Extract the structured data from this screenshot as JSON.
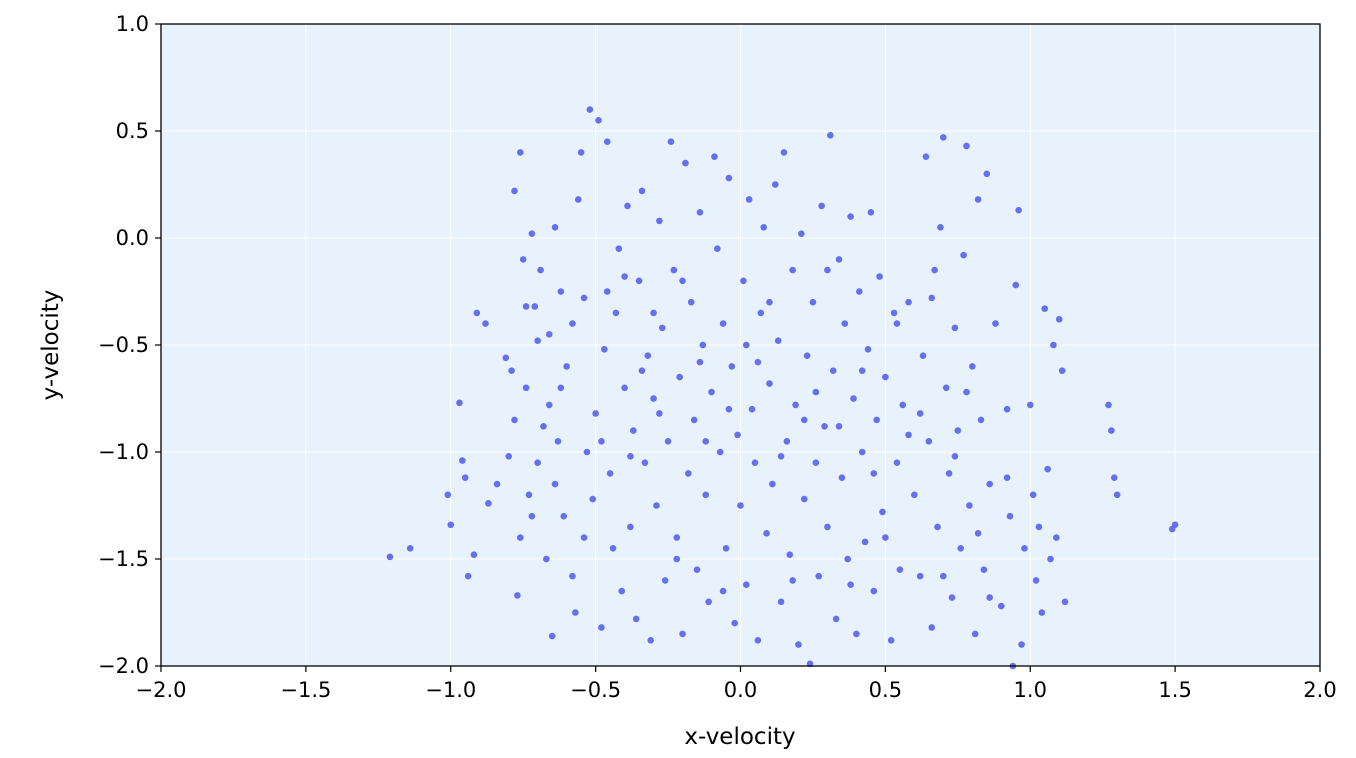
{
  "chart_data": {
    "type": "scatter",
    "title": "",
    "xlabel": "x-velocity",
    "ylabel": "y-velocity",
    "xlim": [
      -2.0,
      2.0
    ],
    "ylim": [
      -2.0,
      1.0
    ],
    "x_ticks": [
      "−2.0",
      "−1.5",
      "−1.0",
      "−0.5",
      "0.0",
      "0.5",
      "1.0",
      "1.5",
      "2.0"
    ],
    "y_ticks": [
      "−2.0",
      "−1.5",
      "−1.0",
      "−0.5",
      "0.0",
      "0.5",
      "1.0"
    ],
    "grid": true,
    "colors": {
      "plot_background": "#e8f2fc",
      "points": "#6470ee",
      "grid": "#ffffff"
    },
    "points": [
      [
        -1.21,
        -1.49
      ],
      [
        -1.14,
        -1.45
      ],
      [
        -1.01,
        -1.2
      ],
      [
        -1.0,
        -1.34
      ],
      [
        -0.97,
        -0.77
      ],
      [
        -0.96,
        -1.04
      ],
      [
        -0.95,
        -1.12
      ],
      [
        -0.94,
        -1.58
      ],
      [
        -0.92,
        -1.48
      ],
      [
        -0.91,
        -0.35
      ],
      [
        -0.88,
        -0.4
      ],
      [
        -0.87,
        -1.24
      ],
      [
        -0.84,
        -1.15
      ],
      [
        -0.81,
        -0.56
      ],
      [
        -0.8,
        -1.02
      ],
      [
        -0.79,
        -0.62
      ],
      [
        -0.78,
        0.22
      ],
      [
        -0.77,
        -1.67
      ],
      [
        -0.76,
        0.4
      ],
      [
        -0.76,
        -1.4
      ],
      [
        -0.75,
        -0.1
      ],
      [
        -0.74,
        -0.7
      ],
      [
        -0.73,
        -1.2
      ],
      [
        -0.72,
        0.02
      ],
      [
        -0.71,
        -0.32
      ],
      [
        -0.7,
        -1.05
      ],
      [
        -0.69,
        -0.15
      ],
      [
        -0.68,
        -0.88
      ],
      [
        -0.67,
        -1.5
      ],
      [
        -0.66,
        -0.45
      ],
      [
        -0.65,
        -1.86
      ],
      [
        -0.64,
        0.05
      ],
      [
        -0.63,
        -0.95
      ],
      [
        -0.62,
        -0.25
      ],
      [
        -0.61,
        -1.3
      ],
      [
        -0.6,
        -0.6
      ],
      [
        -0.58,
        -1.58
      ],
      [
        -0.57,
        -1.75
      ],
      [
        -0.56,
        0.18
      ],
      [
        -0.55,
        0.4
      ],
      [
        -0.54,
        -0.28
      ],
      [
        -0.53,
        -1.0
      ],
      [
        -0.52,
        0.6
      ],
      [
        -0.51,
        -1.22
      ],
      [
        -0.5,
        -0.82
      ],
      [
        -0.49,
        0.55
      ],
      [
        -0.48,
        -1.82
      ],
      [
        -0.47,
        -0.52
      ],
      [
        -0.46,
        0.45
      ],
      [
        -0.45,
        -1.1
      ],
      [
        -0.44,
        -1.45
      ],
      [
        -0.43,
        -0.35
      ],
      [
        -0.42,
        -0.05
      ],
      [
        -0.41,
        -1.65
      ],
      [
        -0.4,
        -0.7
      ],
      [
        -0.39,
        0.15
      ],
      [
        -0.38,
        -1.35
      ],
      [
        -0.37,
        -0.9
      ],
      [
        -0.36,
        -1.78
      ],
      [
        -0.35,
        -0.2
      ],
      [
        -0.34,
        0.22
      ],
      [
        -0.33,
        -1.05
      ],
      [
        -0.32,
        -0.55
      ],
      [
        -0.31,
        -1.88
      ],
      [
        -0.3,
        -0.75
      ],
      [
        -0.29,
        -1.25
      ],
      [
        -0.28,
        0.08
      ],
      [
        -0.27,
        -0.42
      ],
      [
        -0.26,
        -1.6
      ],
      [
        -0.25,
        -0.95
      ],
      [
        -0.24,
        0.45
      ],
      [
        -0.23,
        -0.15
      ],
      [
        -0.22,
        -1.4
      ],
      [
        -0.21,
        -0.65
      ],
      [
        -0.2,
        -1.85
      ],
      [
        -0.19,
        0.35
      ],
      [
        -0.18,
        -1.1
      ],
      [
        -0.17,
        -0.3
      ],
      [
        -0.16,
        -0.85
      ],
      [
        -0.15,
        -1.55
      ],
      [
        -0.14,
        0.12
      ],
      [
        -0.13,
        -0.5
      ],
      [
        -0.12,
        -1.2
      ],
      [
        -0.11,
        -1.7
      ],
      [
        -0.1,
        -0.72
      ],
      [
        -0.09,
        0.38
      ],
      [
        -0.08,
        -0.05
      ],
      [
        -0.07,
        -1.0
      ],
      [
        -0.06,
        -0.4
      ],
      [
        -0.05,
        -1.45
      ],
      [
        -0.04,
        0.28
      ],
      [
        -0.03,
        -0.6
      ],
      [
        -0.02,
        -1.8
      ],
      [
        -0.01,
        -0.92
      ],
      [
        0.0,
        -1.25
      ],
      [
        0.01,
        -0.2
      ],
      [
        0.02,
        -1.62
      ],
      [
        0.03,
        0.18
      ],
      [
        0.04,
        -0.8
      ],
      [
        0.05,
        -1.05
      ],
      [
        0.06,
        -1.88
      ],
      [
        0.07,
        -0.35
      ],
      [
        0.08,
        0.05
      ],
      [
        0.09,
        -1.38
      ],
      [
        0.1,
        -0.68
      ],
      [
        0.11,
        -1.15
      ],
      [
        0.12,
        0.25
      ],
      [
        0.13,
        -0.48
      ],
      [
        0.14,
        -1.7
      ],
      [
        0.15,
        0.4
      ],
      [
        0.16,
        -0.95
      ],
      [
        0.17,
        -1.48
      ],
      [
        0.18,
        -0.15
      ],
      [
        0.19,
        -0.78
      ],
      [
        0.2,
        -1.9
      ],
      [
        0.21,
        0.02
      ],
      [
        0.22,
        -1.22
      ],
      [
        0.23,
        -0.55
      ],
      [
        0.24,
        -1.99
      ],
      [
        0.25,
        -0.3
      ],
      [
        0.26,
        -1.05
      ],
      [
        0.27,
        -1.58
      ],
      [
        0.28,
        0.15
      ],
      [
        0.29,
        -0.88
      ],
      [
        0.3,
        -1.35
      ],
      [
        0.31,
        0.48
      ],
      [
        0.32,
        -0.62
      ],
      [
        0.33,
        -1.78
      ],
      [
        0.34,
        -0.1
      ],
      [
        0.35,
        -1.12
      ],
      [
        0.36,
        -0.4
      ],
      [
        0.37,
        -1.5
      ],
      [
        0.38,
        0.1
      ],
      [
        0.39,
        -0.75
      ],
      [
        0.4,
        -1.85
      ],
      [
        0.41,
        -0.25
      ],
      [
        0.42,
        -1.0
      ],
      [
        0.43,
        -1.42
      ],
      [
        0.44,
        -0.52
      ],
      [
        0.45,
        0.12
      ],
      [
        0.46,
        -1.65
      ],
      [
        0.47,
        -0.85
      ],
      [
        0.48,
        -0.18
      ],
      [
        0.49,
        -1.28
      ],
      [
        0.5,
        -0.65
      ],
      [
        0.52,
        -1.88
      ],
      [
        0.53,
        -0.35
      ],
      [
        0.54,
        -1.05
      ],
      [
        0.55,
        -1.55
      ],
      [
        0.56,
        -0.78
      ],
      [
        0.58,
        -0.3
      ],
      [
        0.6,
        -1.2
      ],
      [
        0.62,
        -1.58
      ],
      [
        0.63,
        -0.55
      ],
      [
        0.64,
        0.38
      ],
      [
        0.65,
        -0.95
      ],
      [
        0.66,
        -1.82
      ],
      [
        0.67,
        -0.15
      ],
      [
        0.68,
        -1.35
      ],
      [
        0.69,
        0.05
      ],
      [
        0.7,
        0.47
      ],
      [
        0.71,
        -0.7
      ],
      [
        0.72,
        -1.1
      ],
      [
        0.73,
        -1.68
      ],
      [
        0.74,
        -0.42
      ],
      [
        0.75,
        -0.9
      ],
      [
        0.76,
        -1.45
      ],
      [
        0.77,
        -0.08
      ],
      [
        0.78,
        0.43
      ],
      [
        0.79,
        -1.25
      ],
      [
        0.8,
        -0.6
      ],
      [
        0.81,
        -1.85
      ],
      [
        0.82,
        0.18
      ],
      [
        0.83,
        -0.85
      ],
      [
        0.84,
        -1.55
      ],
      [
        0.85,
        0.3
      ],
      [
        0.86,
        -1.15
      ],
      [
        0.88,
        -0.4
      ],
      [
        0.9,
        -1.72
      ],
      [
        0.92,
        -0.8
      ],
      [
        0.93,
        -1.3
      ],
      [
        0.94,
        -2.0
      ],
      [
        0.95,
        -0.22
      ],
      [
        0.96,
        0.13
      ],
      [
        0.97,
        -1.9
      ],
      [
        0.98,
        -1.45
      ],
      [
        1.0,
        -0.78
      ],
      [
        1.01,
        -1.2
      ],
      [
        1.02,
        -1.6
      ],
      [
        1.03,
        -1.35
      ],
      [
        1.04,
        -1.75
      ],
      [
        1.05,
        -0.33
      ],
      [
        1.06,
        -1.08
      ],
      [
        1.07,
        -1.5
      ],
      [
        1.08,
        -0.5
      ],
      [
        1.09,
        -1.4
      ],
      [
        1.1,
        -0.38
      ],
      [
        1.11,
        -0.62
      ],
      [
        1.12,
        -1.7
      ],
      [
        1.27,
        -0.78
      ],
      [
        1.28,
        -0.9
      ],
      [
        1.29,
        -1.12
      ],
      [
        1.3,
        -1.2
      ],
      [
        1.49,
        -1.36
      ],
      [
        1.5,
        -1.34
      ],
      [
        -0.74,
        -0.32
      ],
      [
        -0.7,
        -0.48
      ],
      [
        -0.66,
        -0.78
      ],
      [
        -0.58,
        -0.4
      ],
      [
        -0.48,
        -0.95
      ],
      [
        -0.4,
        -0.18
      ],
      [
        -0.34,
        -0.62
      ],
      [
        -0.28,
        -0.82
      ],
      [
        -0.2,
        -0.2
      ],
      [
        -0.12,
        -0.95
      ],
      [
        -0.06,
        -1.65
      ],
      [
        0.02,
        -0.5
      ],
      [
        0.1,
        -0.3
      ],
      [
        0.18,
        -1.6
      ],
      [
        0.26,
        -0.72
      ],
      [
        0.34,
        -0.88
      ],
      [
        0.42,
        -0.62
      ],
      [
        0.5,
        -1.4
      ],
      [
        0.58,
        -0.92
      ],
      [
        0.66,
        -0.28
      ],
      [
        0.74,
        -1.02
      ],
      [
        0.82,
        -1.38
      ],
      [
        -0.62,
        -0.7
      ],
      [
        -0.54,
        -1.4
      ],
      [
        -0.46,
        -0.25
      ],
      [
        -0.38,
        -1.02
      ],
      [
        -0.3,
        -0.35
      ],
      [
        -0.22,
        -1.5
      ],
      [
        -0.14,
        -0.58
      ],
      [
        -0.04,
        -0.8
      ],
      [
        0.06,
        -0.58
      ],
      [
        0.14,
        -1.02
      ],
      [
        0.22,
        -0.85
      ],
      [
        0.3,
        -0.15
      ],
      [
        0.38,
        -1.62
      ],
      [
        0.46,
        -1.1
      ],
      [
        0.54,
        -0.4
      ],
      [
        0.62,
        -0.82
      ],
      [
        0.7,
        -1.58
      ],
      [
        0.78,
        -0.72
      ],
      [
        0.86,
        -1.68
      ],
      [
        0.92,
        -1.12
      ],
      [
        -0.78,
        -0.85
      ],
      [
        -0.72,
        -1.3
      ],
      [
        -0.64,
        -1.15
      ]
    ]
  }
}
